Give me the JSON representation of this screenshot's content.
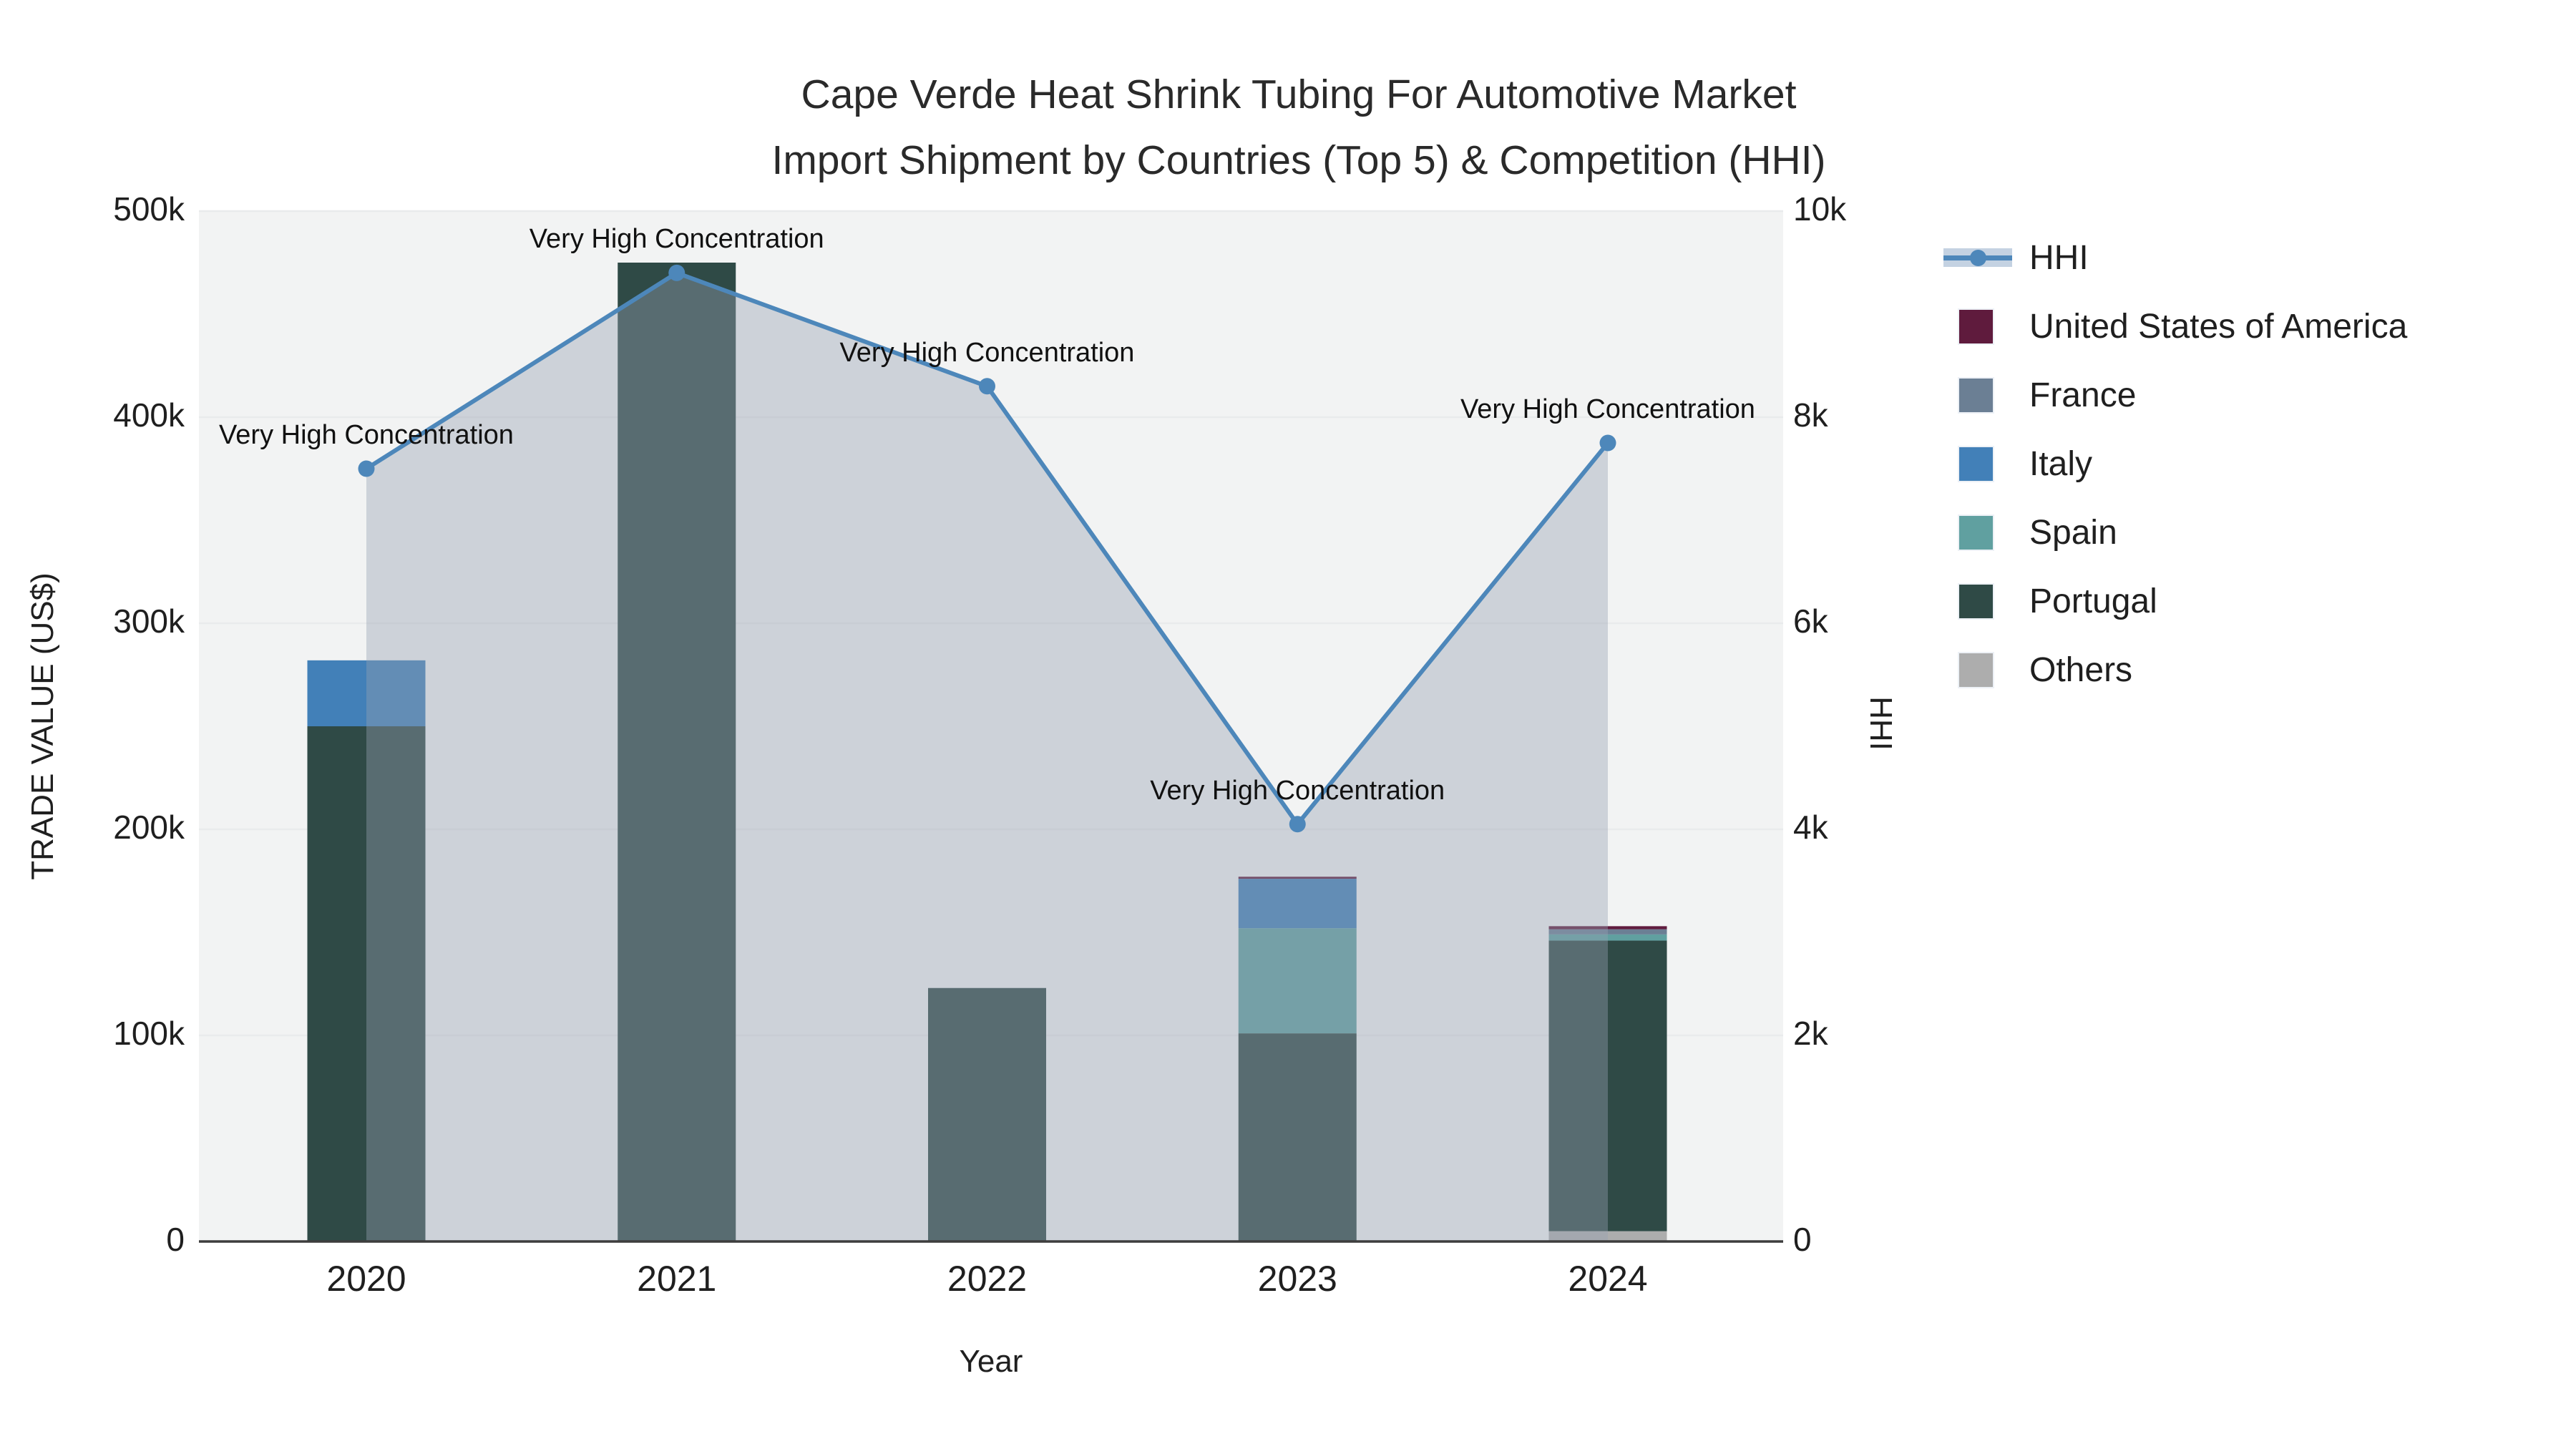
{
  "title": {
    "line1": "Cape Verde Heat Shrink Tubing For Automotive Market",
    "line2": "Import Shipment by Countries (Top 5) & Competition (HHI)"
  },
  "chart_data": {
    "type": "bar+line",
    "title": "Cape Verde Heat Shrink Tubing For Automotive Market Import Shipment by Countries (Top 5) & Competition (HHI)",
    "categories": [
      "2020",
      "2021",
      "2022",
      "2023",
      "2024"
    ],
    "xlabel": "Year",
    "ylabel_left": "TRADE VALUE (US$)",
    "ylabel_right": "HHI",
    "y_left": {
      "min": 0,
      "max": 500000,
      "tick_values": [
        0,
        100000,
        200000,
        300000,
        400000,
        500000
      ],
      "tick_labels": [
        "0",
        "100k",
        "200k",
        "300k",
        "400k",
        "500k"
      ]
    },
    "y_right": {
      "min": 0,
      "max": 10000,
      "tick_values": [
        0,
        2000,
        4000,
        6000,
        8000,
        10000
      ],
      "tick_labels": [
        "0",
        "2k",
        "4k",
        "6k",
        "8k",
        "10k"
      ]
    },
    "grid": true,
    "legend_position": "right",
    "bar_series_stack_bottom_to_top": [
      {
        "name": "Others",
        "color": "#adadad",
        "values": [
          0,
          0,
          0,
          0,
          5000
        ]
      },
      {
        "name": "Portugal",
        "color": "#2f4a46",
        "values": [
          250000,
          475000,
          123000,
          101000,
          141000
        ]
      },
      {
        "name": "Spain",
        "color": "#60a0a0",
        "values": [
          0,
          0,
          0,
          51000,
          3000
        ]
      },
      {
        "name": "Italy",
        "color": "#4280b8",
        "values": [
          32000,
          0,
          0,
          24000,
          0
        ]
      },
      {
        "name": "France",
        "color": "#6b7f94",
        "values": [
          0,
          0,
          0,
          0,
          2500
        ]
      },
      {
        "name": "United States of America",
        "color": "#5f1b3d",
        "values": [
          0,
          0,
          0,
          1000,
          1500
        ]
      }
    ],
    "line_series": {
      "name": "HHI",
      "color": "#4d87ba",
      "area_fill_rgba": "rgba(150,160,178,0.40)",
      "values": [
        7500,
        9400,
        8300,
        4050,
        7750
      ]
    },
    "annotations": [
      {
        "text": "Very High Concentration",
        "x_index": 0
      },
      {
        "text": "Very High Concentration",
        "x_index": 1
      },
      {
        "text": "Very High Concentration",
        "x_index": 2
      },
      {
        "text": "Very High Concentration",
        "x_index": 3
      },
      {
        "text": "Very High Concentration",
        "x_index": 4
      }
    ]
  },
  "legend": {
    "items": [
      {
        "label": "HHI",
        "type": "line",
        "color": "#4d87ba"
      },
      {
        "label": "United States of America",
        "type": "swatch",
        "color": "#5f1b3d"
      },
      {
        "label": "France",
        "type": "swatch",
        "color": "#6b7f94"
      },
      {
        "label": "Italy",
        "type": "swatch",
        "color": "#4280b8"
      },
      {
        "label": "Spain",
        "type": "swatch",
        "color": "#60a0a0"
      },
      {
        "label": "Portugal",
        "type": "swatch",
        "color": "#2f4a46"
      },
      {
        "label": "Others",
        "type": "swatch",
        "color": "#adadad"
      }
    ]
  },
  "colors": {
    "plot_background": "#f2f3f3",
    "page_background": "#ffffff",
    "gridline": "#e9ebec",
    "axis_line": "#3d3d3d",
    "text": "#1f1f1f"
  }
}
